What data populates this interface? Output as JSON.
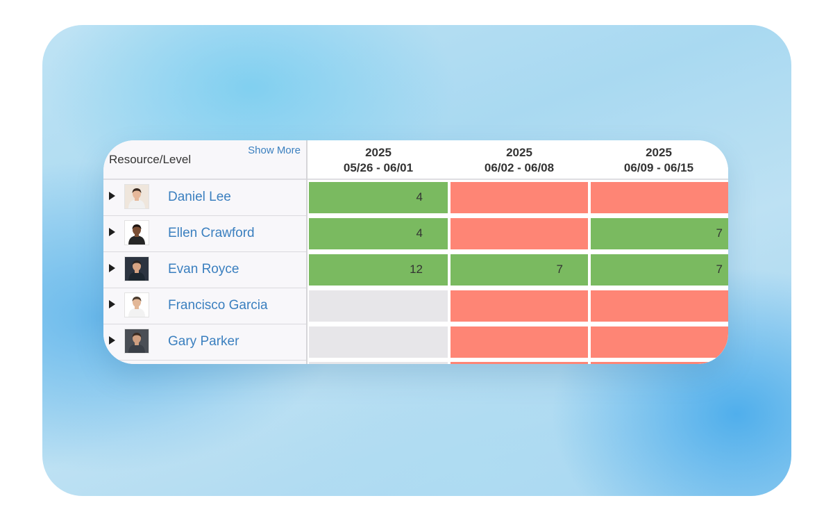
{
  "colors": {
    "available": "#7aba60",
    "over": "#fe8575",
    "none": "#e7e6e9",
    "link": "#3a7fbf"
  },
  "header": {
    "resource_level_label": "Resource/Level",
    "show_more_label": "Show More"
  },
  "weeks": [
    {
      "year": "2025",
      "range": "05/26 - 06/01"
    },
    {
      "year": "2025",
      "range": "06/02 - 06/08"
    },
    {
      "year": "2025",
      "range": "06/09 - 06/15"
    }
  ],
  "resources": [
    {
      "name": "Daniel Lee",
      "avatar": "avatar-photo",
      "cells": [
        {
          "status": "available",
          "value": "4"
        },
        {
          "status": "over",
          "value": ""
        },
        {
          "status": "over",
          "value": ""
        }
      ]
    },
    {
      "name": "Ellen Crawford",
      "avatar": "avatar-photo",
      "cells": [
        {
          "status": "available",
          "value": "4"
        },
        {
          "status": "over",
          "value": ""
        },
        {
          "status": "available",
          "value": "7"
        }
      ]
    },
    {
      "name": "Evan Royce",
      "avatar": "avatar-photo",
      "cells": [
        {
          "status": "available",
          "value": "12"
        },
        {
          "status": "available",
          "value": "7"
        },
        {
          "status": "available",
          "value": "7"
        }
      ]
    },
    {
      "name": "Francisco Garcia",
      "avatar": "avatar-photo",
      "cells": [
        {
          "status": "none",
          "value": ""
        },
        {
          "status": "over",
          "value": ""
        },
        {
          "status": "over",
          "value": ""
        }
      ]
    },
    {
      "name": "Gary Parker",
      "avatar": "avatar-photo",
      "cells": [
        {
          "status": "none",
          "value": ""
        },
        {
          "status": "over",
          "value": ""
        },
        {
          "status": "over",
          "value": ""
        }
      ]
    }
  ]
}
